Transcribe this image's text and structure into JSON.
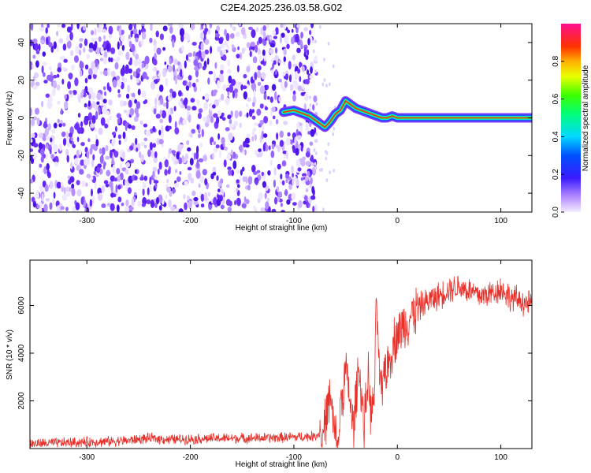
{
  "figure": {
    "title": "C2E4.2025.236.03.58.G02"
  },
  "colors": {
    "snr_line": "#e8302a",
    "spectrogram_noise_dark": "#5a1ff0",
    "spectrogram_noise_light": "#d9c6ff",
    "signal_core": "#ff2a2a",
    "signal_edge": "#18ff40"
  },
  "chart_data": [
    {
      "type": "heatmap",
      "title": "C2E4.2025.236.03.58.G02",
      "xlabel": "Height of straight line (km)",
      "ylabel": "Frequency (Hz)",
      "xlim": [
        -355,
        130
      ],
      "ylim": [
        -50,
        50
      ],
      "x_ticks": [
        -300,
        -200,
        -100,
        0,
        100
      ],
      "y_ticks": [
        -40,
        -20,
        0,
        20,
        40
      ],
      "noise_region_x": [
        -355,
        -72
      ],
      "signal_track": {
        "x": [
          -110,
          -100,
          -90,
          -85,
          -80,
          -75,
          -70,
          -65,
          -60,
          -55,
          -50,
          -45,
          -40,
          -35,
          -30,
          -25,
          -20,
          -15,
          -10,
          -5,
          0,
          5,
          10,
          20,
          40,
          60,
          80,
          100,
          130
        ],
        "freq": [
          3,
          4,
          2,
          1,
          -1,
          -3,
          -5,
          -2,
          2,
          4,
          9,
          7,
          5,
          4,
          3,
          2,
          1,
          0,
          0,
          1,
          0,
          0,
          0,
          0,
          0,
          0,
          0,
          0,
          0
        ]
      },
      "colorbar": {
        "label": "Normalized spectral amplitude",
        "range": [
          0,
          1
        ],
        "ticks": [
          "0.0",
          "0.2",
          "0.4",
          "0.6",
          "0.8"
        ],
        "colormap": "rainbow (purple-blue-cyan-green-yellow-red-magenta)"
      }
    },
    {
      "type": "line",
      "xlabel": "Height of straight line (km)",
      "ylabel": "SNR (10 * v/v)",
      "xlim": [
        -355,
        130
      ],
      "ylim": [
        0,
        7900
      ],
      "x_ticks": [
        -300,
        -200,
        -100,
        0,
        100
      ],
      "y_ticks": [
        2000,
        4000,
        6000
      ],
      "series": [
        {
          "x": [
            -355,
            -340,
            -320,
            -300,
            -280,
            -260,
            -240,
            -220,
            -200,
            -180,
            -160,
            -140,
            -120,
            -100,
            -90,
            -80,
            -72,
            -68,
            -65,
            -62,
            -60,
            -57,
            -55,
            -52,
            -50,
            -47,
            -45,
            -42,
            -40,
            -37,
            -35,
            -32,
            -30,
            -28,
            -25,
            -22,
            -20,
            -18,
            -15,
            -12,
            -10,
            -5,
            0,
            10,
            20,
            30,
            40,
            50,
            60,
            70,
            80,
            90,
            100,
            110,
            120,
            130
          ],
          "y": [
            200,
            220,
            250,
            270,
            300,
            340,
            430,
            380,
            400,
            420,
            430,
            440,
            450,
            480,
            500,
            520,
            700,
            1500,
            2200,
            1000,
            400,
            300,
            1800,
            2700,
            3200,
            2600,
            1500,
            800,
            2400,
            3400,
            2500,
            700,
            2200,
            3000,
            1200,
            2500,
            6500,
            3500,
            2000,
            3800,
            3200,
            4300,
            4800,
            5400,
            5900,
            6200,
            6400,
            6700,
            6800,
            6600,
            6400,
            6500,
            6700,
            6300,
            6200,
            6000
          ]
        }
      ]
    }
  ]
}
